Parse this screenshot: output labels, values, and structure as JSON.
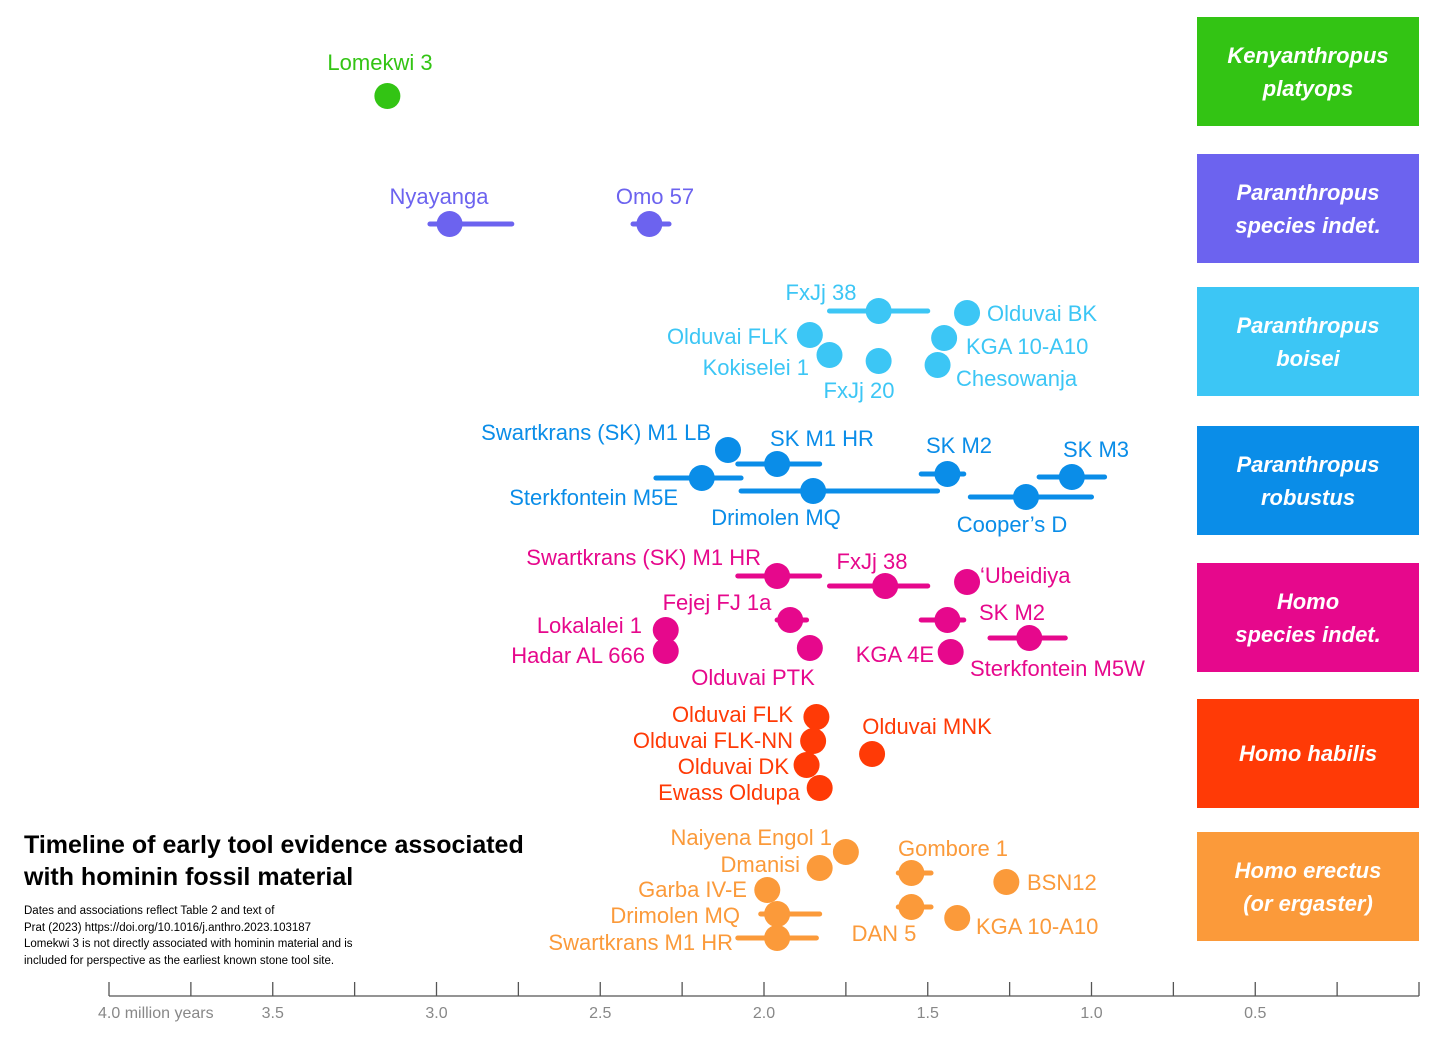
{
  "chart_data": {
    "type": "scatter",
    "title": "Timeline of early tool evidence associated with hominin fossil material",
    "notes": [
      "Dates and associations reflect Table 2 and text of",
      "Prat (2023) https://doi.org/10.1016/j.anthro.2023.103187",
      "Lomekwi 3 is not directly associated with hominin material and is",
      "included for perspective as the earliest known stone tool site."
    ],
    "x_axis": {
      "unit": "million years",
      "reversed": true,
      "range": [
        4.0,
        0.0
      ],
      "major_ticks": [
        4.0,
        3.5,
        3.0,
        2.5,
        2.0,
        1.5,
        1.0,
        0.5
      ],
      "minor_ticks": [
        3.75,
        3.25,
        2.75,
        2.25,
        1.75,
        1.25,
        0.75,
        0.25,
        0.0
      ],
      "tick_labels": [
        "4.0 million years",
        "3.5",
        "3.0",
        "2.5",
        "2.0",
        "1.5",
        "1.0",
        "0.5"
      ]
    },
    "groups": [
      {
        "name": "Kenyanthropus\nplatyops",
        "color": "#33c414",
        "points": [
          {
            "site": "Lomekwi 3",
            "age": 3.15
          }
        ]
      },
      {
        "name": "Paranthropus\nspecies indet.",
        "color": "#6c63ef",
        "points": [
          {
            "site": "Nyayanga",
            "age": 2.96,
            "range": [
              3.02,
              2.77
            ]
          },
          {
            "site": "Omo 57",
            "age": 2.35,
            "range": [
              2.4,
              2.29
            ]
          }
        ]
      },
      {
        "name": "Paranthropus\nboisei",
        "color": "#3cc6f5",
        "points": [
          {
            "site": "FxJj 38",
            "age": 1.65,
            "range": [
              1.8,
              1.5
            ]
          },
          {
            "site": "Olduvai BK",
            "age": 1.38
          },
          {
            "site": "Olduvai FLK",
            "age": 1.86
          },
          {
            "site": "KGA 10-A10",
            "age": 1.45
          },
          {
            "site": "Kokiselei 1",
            "age": 1.8
          },
          {
            "site": "FxJj 20",
            "age": 1.65
          },
          {
            "site": "Chesowanja",
            "age": 1.47
          }
        ]
      },
      {
        "name": "Paranthropus\nrobustus",
        "color": "#0a8de8",
        "points": [
          {
            "site": "Swartkrans (SK) M1 LB",
            "age": 2.11
          },
          {
            "site": "SK M1 HR",
            "age": 1.96,
            "range": [
              2.08,
              1.83
            ]
          },
          {
            "site": "SK M2",
            "age": 1.44,
            "range": [
              1.52,
              1.39
            ]
          },
          {
            "site": "SK M3",
            "age": 1.06,
            "range": [
              1.16,
              0.96
            ]
          },
          {
            "site": "Sterkfontein M5E",
            "age": 2.19,
            "range": [
              2.33,
              2.07
            ]
          },
          {
            "site": "Drimolen MQ",
            "age": 1.85,
            "range": [
              2.07,
              1.47
            ]
          },
          {
            "site": "Cooper’s D",
            "age": 1.2,
            "range": [
              1.37,
              1.0
            ]
          }
        ]
      },
      {
        "name": "Homo\nspecies indet.",
        "color": "#e6088c",
        "points": [
          {
            "site": "Swartkrans (SK) M1 HR",
            "age": 1.96,
            "range": [
              2.08,
              1.83
            ]
          },
          {
            "site": "FxJj 38",
            "age": 1.63,
            "range": [
              1.8,
              1.5
            ]
          },
          {
            "site": "‘Ubeidiya",
            "age": 1.38
          },
          {
            "site": "Fejej FJ 1a",
            "age": 1.92,
            "range": [
              1.96,
              1.87
            ]
          },
          {
            "site": "SK M2",
            "age": 1.44,
            "range": [
              1.52,
              1.39
            ]
          },
          {
            "site": "Lokalalei 1",
            "age": 2.3
          },
          {
            "site": "Hadar AL 666",
            "age": 2.3
          },
          {
            "site": "Olduvai PTK",
            "age": 1.86
          },
          {
            "site": "KGA 4E",
            "age": 1.43
          },
          {
            "site": "Sterkfontein M5W",
            "age": 1.19,
            "range": [
              1.31,
              1.08
            ]
          }
        ]
      },
      {
        "name": "Homo habilis",
        "color": "#ff3a06",
        "points": [
          {
            "site": "Olduvai FLK",
            "age": 1.84
          },
          {
            "site": "Olduvai FLK-NN",
            "age": 1.85
          },
          {
            "site": "Olduvai DK",
            "age": 1.87
          },
          {
            "site": "Ewass Oldupa",
            "age": 1.83
          },
          {
            "site": "Olduvai MNK",
            "age": 1.67
          }
        ]
      },
      {
        "name": "Homo erectus\n(or ergaster)",
        "color": "#fb9a3a",
        "points": [
          {
            "site": "Naiyena Engol 1",
            "age": 1.75
          },
          {
            "site": "Dmanisi",
            "age": 1.83
          },
          {
            "site": "Gombore 1",
            "age": 1.55,
            "range": [
              1.59,
              1.49
            ]
          },
          {
            "site": "BSN12",
            "age": 1.26
          },
          {
            "site": "Garba IV-E",
            "age": 1.99
          },
          {
            "site": "Drimolen MQ",
            "age": 1.96,
            "range": [
              2.01,
              1.83
            ]
          },
          {
            "site": "DAN 5",
            "age": 1.55,
            "range": [
              1.59,
              1.49
            ]
          },
          {
            "site": "KGA 10-A10",
            "age": 1.41
          },
          {
            "site": "Swartkrans M1 HR",
            "age": 1.96,
            "range": [
              2.08,
              1.84
            ]
          }
        ]
      }
    ],
    "axis_color": "#555555",
    "tick_label_color": "#888888"
  }
}
